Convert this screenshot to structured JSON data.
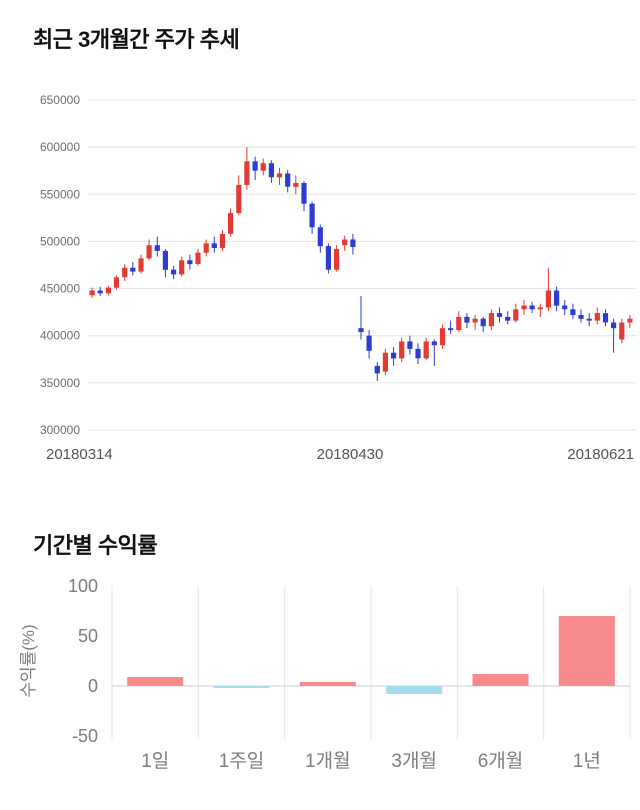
{
  "page": {
    "section1_title": "최근 3개월간 주가 추세",
    "section2_title": "기간별 수익률"
  },
  "chart_data": [
    {
      "type": "candlestick",
      "title": "최근 3개월간 주가 추세",
      "ylim": [
        300000,
        650000
      ],
      "yticks": [
        650000,
        600000,
        550000,
        500000,
        450000,
        400000,
        350000,
        300000
      ],
      "xticks": [
        {
          "label": "20180314",
          "align": "start"
        },
        {
          "label": "20180430",
          "align": "middle"
        },
        {
          "label": "20180621",
          "align": "end"
        }
      ],
      "grid": "horizontal-only",
      "colors": {
        "up": "#e23b34",
        "down": "#2e3bd0",
        "grid": "#e6e6e6",
        "tick_text": "#6e6e6e",
        "xtick_text": "#555555"
      },
      "candles_ohlc": [
        [
          443000,
          451000,
          440000,
          448000
        ],
        [
          448000,
          452000,
          442000,
          445000
        ],
        [
          445000,
          453000,
          443000,
          451000
        ],
        [
          451000,
          464000,
          449000,
          462000
        ],
        [
          462000,
          476000,
          458000,
          472000
        ],
        [
          472000,
          478000,
          464000,
          468000
        ],
        [
          468000,
          486000,
          466000,
          482000
        ],
        [
          482000,
          502000,
          480000,
          496000
        ],
        [
          496000,
          505000,
          484000,
          490000
        ],
        [
          490000,
          492000,
          462000,
          470000
        ],
        [
          470000,
          474000,
          460000,
          465000
        ],
        [
          465000,
          484000,
          463000,
          480000
        ],
        [
          480000,
          486000,
          470000,
          476000
        ],
        [
          476000,
          492000,
          474000,
          488000
        ],
        [
          488000,
          502000,
          484000,
          498000
        ],
        [
          498000,
          505000,
          488000,
          493000
        ],
        [
          493000,
          512000,
          490000,
          508000
        ],
        [
          508000,
          535000,
          505000,
          530000
        ],
        [
          530000,
          570000,
          528000,
          560000
        ],
        [
          560000,
          600000,
          555000,
          585000
        ],
        [
          585000,
          590000,
          565000,
          575000
        ],
        [
          575000,
          588000,
          570000,
          583000
        ],
        [
          583000,
          586000,
          562000,
          568000
        ],
        [
          568000,
          578000,
          560000,
          572000
        ],
        [
          572000,
          576000,
          552000,
          558000
        ],
        [
          558000,
          570000,
          550000,
          562000
        ],
        [
          562000,
          564000,
          532000,
          540000
        ],
        [
          540000,
          542000,
          508000,
          515000
        ],
        [
          515000,
          518000,
          488000,
          495000
        ],
        [
          495000,
          498000,
          466000,
          470000
        ],
        [
          470000,
          496000,
          468000,
          492000
        ],
        [
          496000,
          506000,
          490000,
          502000
        ],
        [
          502000,
          508000,
          486000,
          494000
        ],
        [
          408000,
          442000,
          396000,
          404000
        ],
        [
          400000,
          406000,
          376000,
          384000
        ],
        [
          368000,
          372000,
          352000,
          360000
        ],
        [
          362000,
          386000,
          358000,
          382000
        ],
        [
          382000,
          388000,
          368000,
          376000
        ],
        [
          376000,
          398000,
          372000,
          394000
        ],
        [
          394000,
          400000,
          380000,
          386000
        ],
        [
          386000,
          392000,
          370000,
          376000
        ],
        [
          376000,
          398000,
          374000,
          394000
        ],
        [
          394000,
          396000,
          368000,
          390000
        ],
        [
          390000,
          412000,
          386000,
          408000
        ],
        [
          408000,
          416000,
          402000,
          406000
        ],
        [
          406000,
          426000,
          404000,
          420000
        ],
        [
          420000,
          424000,
          408000,
          414000
        ],
        [
          414000,
          422000,
          406000,
          418000
        ],
        [
          418000,
          420000,
          404000,
          410000
        ],
        [
          410000,
          428000,
          406000,
          424000
        ],
        [
          424000,
          430000,
          414000,
          420000
        ],
        [
          420000,
          426000,
          412000,
          416000
        ],
        [
          416000,
          434000,
          414000,
          428000
        ],
        [
          428000,
          438000,
          422000,
          432000
        ],
        [
          432000,
          436000,
          424000,
          428000
        ],
        [
          428000,
          434000,
          420000,
          430000
        ],
        [
          430000,
          472000,
          426000,
          448000
        ],
        [
          448000,
          452000,
          426000,
          432000
        ],
        [
          432000,
          438000,
          422000,
          428000
        ],
        [
          428000,
          434000,
          418000,
          422000
        ],
        [
          422000,
          428000,
          414000,
          418000
        ],
        [
          418000,
          424000,
          410000,
          416000
        ],
        [
          416000,
          430000,
          412000,
          424000
        ],
        [
          424000,
          428000,
          410000,
          414000
        ],
        [
          414000,
          418000,
          382000,
          408000
        ],
        [
          396000,
          418000,
          392000,
          414000
        ],
        [
          414000,
          422000,
          408000,
          418000
        ]
      ]
    },
    {
      "type": "bar",
      "title": "기간별 수익률",
      "ylabel": "수익률(%)",
      "categories": [
        "1일",
        "1주일",
        "1개월",
        "3개월",
        "6개월",
        "1년"
      ],
      "values": [
        9,
        -2,
        4,
        -8,
        12,
        70
      ],
      "ylim": [
        -50,
        100
      ],
      "yticks": [
        100,
        50,
        0,
        -50
      ],
      "grid": "vertical-separators-and-zero-line",
      "legend": "none",
      "colors": {
        "positive": "#f8898d",
        "negative": "#a5dcef",
        "grid": "#e4e4e4",
        "zero_line": "#cfcfcf",
        "tick_text": "#7d7d7d"
      }
    }
  ]
}
